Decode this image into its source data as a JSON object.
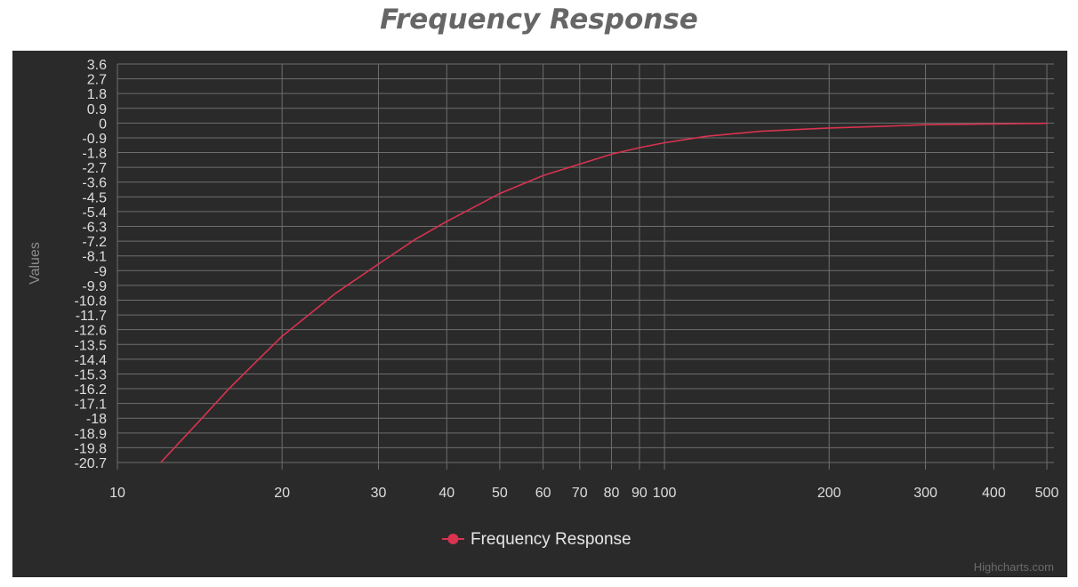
{
  "chart_data": {
    "type": "line",
    "title": "Frequency Response",
    "xlabel": "",
    "ylabel": "Values",
    "x_scale": "log",
    "xlim": [
      10,
      500
    ],
    "ylim": [
      -20.7,
      3.6
    ],
    "grid": true,
    "legend_position": "bottom-center",
    "x_tick_labels": [
      "10",
      "20",
      "30",
      "40",
      "50",
      "60",
      "70",
      "80",
      "90",
      "100",
      "200",
      "300",
      "400",
      "500"
    ],
    "x_ticks": [
      10,
      20,
      30,
      40,
      50,
      60,
      70,
      80,
      90,
      100,
      200,
      300,
      400,
      500
    ],
    "y_tick_labels": [
      "3.6",
      "2.7",
      "1.8",
      "0.9",
      "0",
      "-0.9",
      "-1.8",
      "-2.7",
      "-3.6",
      "-4.5",
      "-5.4",
      "-6.3",
      "-7.2",
      "-8.1",
      "-9",
      "-9.9",
      "-10.8",
      "-11.7",
      "-12.6",
      "-13.5",
      "-14.4",
      "-15.3",
      "-16.2",
      "-17.1",
      "-18",
      "-18.9",
      "-19.8",
      "-20.7"
    ],
    "series": [
      {
        "name": "Frequency Response",
        "color": "#d8334f",
        "x": [
          12,
          14,
          16,
          18,
          20,
          25,
          30,
          35,
          40,
          45,
          50,
          60,
          70,
          80,
          90,
          100,
          120,
          150,
          200,
          250,
          300,
          400,
          500
        ],
        "y": [
          -20.7,
          -18.3,
          -16.2,
          -14.5,
          -13.0,
          -10.4,
          -8.6,
          -7.1,
          -6.0,
          -5.1,
          -4.3,
          -3.2,
          -2.5,
          -1.9,
          -1.5,
          -1.2,
          -0.8,
          -0.5,
          -0.3,
          -0.2,
          -0.1,
          -0.05,
          -0.02
        ]
      }
    ]
  },
  "credit": "Highcharts.com",
  "colors": {
    "panel_background": "#2a2a2a",
    "grid": "#6e6e6e",
    "series": "#d8334f"
  }
}
